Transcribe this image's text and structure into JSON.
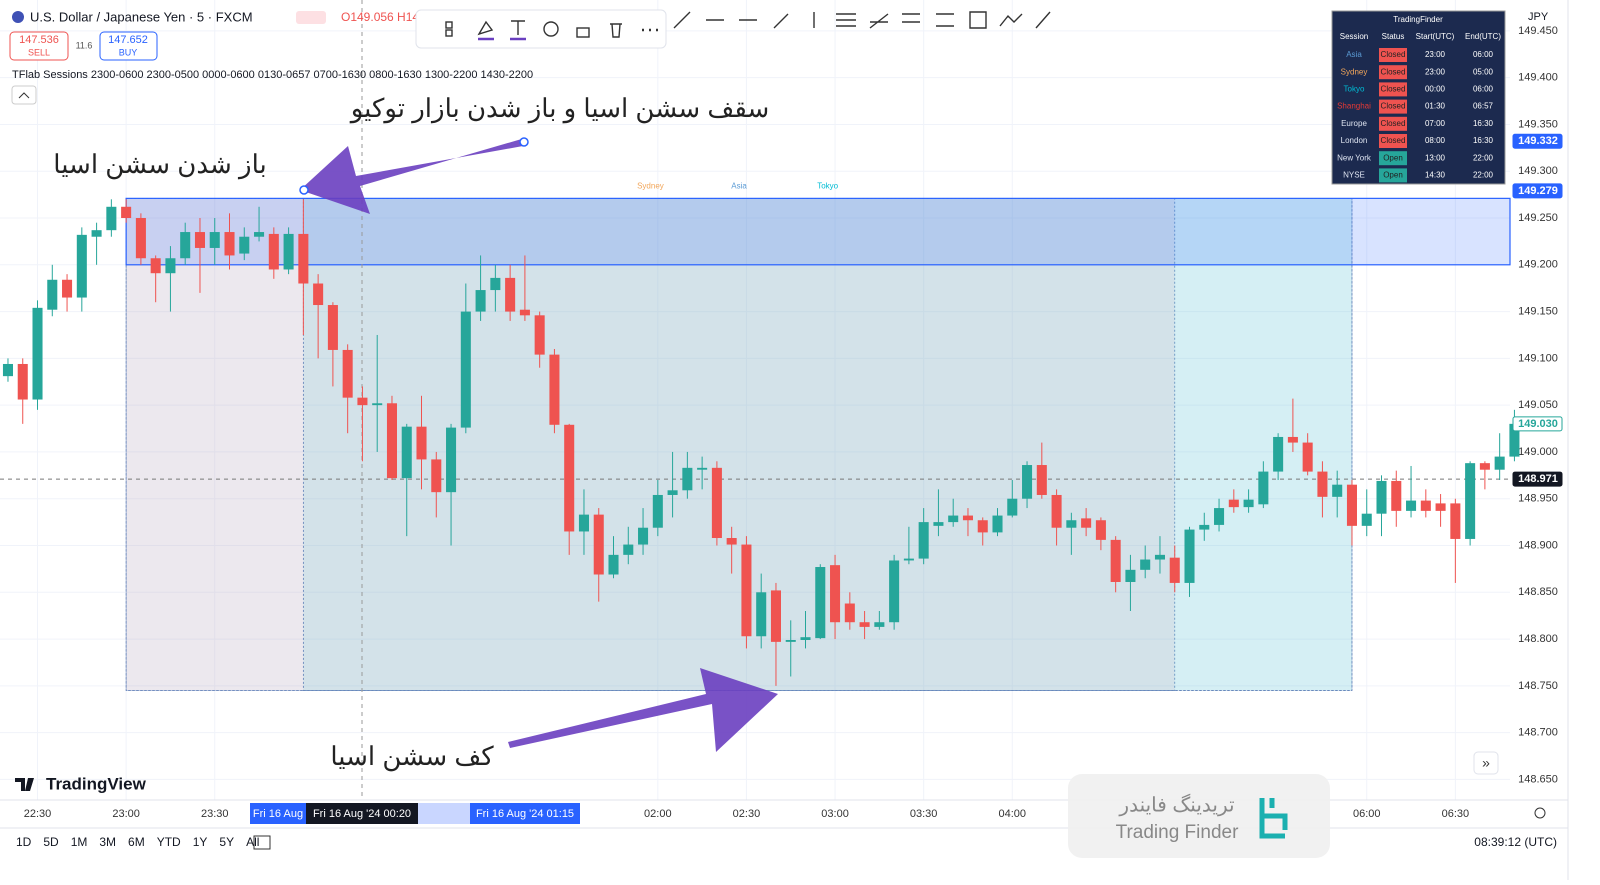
{
  "header": {
    "symbol": "U.S. Dollar / Japanese Yen · 5 · FXCM",
    "ohlc": "O149.056 H14",
    "sell_price": "147.536",
    "sell": "SELL",
    "spread": "11.6",
    "buy_price": "147.652",
    "buy": "BUY",
    "indicator": "TFlab Sessions 2300-0600 2300-0500 0000-0600 0130-0657 0700-1630 0800-1630 1300-2200 1430-2200",
    "currency": "JPY"
  },
  "chart_data": {
    "type": "candlestick",
    "up_color": "#26a69a",
    "down_color": "#ef5350",
    "open": [
      149.081,
      149.094,
      149.056,
      149.152,
      149.184,
      149.165,
      149.23,
      149.237,
      149.262,
      149.25,
      149.207,
      149.191,
      149.207,
      149.235,
      149.218,
      149.235,
      149.212,
      149.23,
      149.233,
      149.195,
      149.233,
      149.18,
      149.157,
      149.109,
      149.058,
      149.05,
      149.052,
      148.972,
      149.027,
      148.992,
      148.957,
      149.026,
      149.15,
      149.173,
      149.186,
      149.152,
      149.146,
      149.104,
      149.029,
      148.915,
      148.933,
      148.869,
      148.89,
      148.901,
      148.919,
      148.954,
      148.959,
      148.981,
      148.983,
      148.908,
      148.901,
      148.803,
      148.852,
      148.797,
      148.799,
      148.801,
      148.879,
      148.838,
      148.818,
      148.813,
      148.818,
      148.884,
      148.886,
      148.921,
      148.925,
      148.932,
      148.927,
      148.914,
      148.932,
      148.95,
      148.986,
      148.954,
      148.919,
      148.929,
      148.927,
      148.906,
      148.861,
      148.874,
      148.885,
      148.887,
      148.86,
      148.917,
      148.922,
      148.949,
      148.941,
      148.944,
      148.979,
      149.016,
      149.01,
      148.979,
      148.952,
      148.965,
      148.921,
      148.934,
      148.969,
      148.937,
      148.948,
      148.945,
      148.945,
      148.907,
      148.988,
      148.981,
      148.995
    ],
    "high": [
      149.1,
      149.1,
      149.162,
      149.2,
      149.19,
      149.24,
      149.245,
      149.27,
      149.27,
      149.255,
      149.21,
      149.22,
      149.245,
      149.25,
      149.25,
      149.255,
      149.24,
      149.262,
      149.24,
      149.24,
      149.27,
      149.19,
      149.16,
      149.115,
      149.07,
      149.125,
      149.06,
      149.03,
      149.06,
      149.0,
      149.03,
      149.18,
      149.21,
      149.2,
      149.2,
      149.21,
      149.15,
      149.11,
      149.03,
      148.96,
      148.94,
      148.91,
      148.92,
      148.94,
      148.97,
      149.0,
      149.0,
      148.995,
      148.99,
      148.92,
      148.91,
      148.87,
      148.86,
      148.82,
      148.83,
      148.88,
      148.89,
      148.85,
      148.83,
      148.83,
      148.89,
      148.92,
      148.94,
      148.96,
      148.95,
      148.94,
      148.93,
      148.94,
      148.97,
      148.99,
      149.01,
      148.96,
      148.935,
      148.94,
      148.93,
      148.91,
      148.89,
      148.9,
      148.91,
      148.9,
      148.92,
      148.935,
      148.95,
      148.96,
      148.96,
      148.99,
      149.02,
      149.057,
      149.02,
      148.99,
      148.98,
      148.97,
      148.96,
      148.975,
      148.98,
      148.985,
      148.96,
      148.955,
      148.95,
      148.99,
      148.99,
      149.02,
      149.045
    ],
    "low": [
      149.075,
      149.03,
      149.045,
      149.145,
      149.15,
      149.15,
      149.2,
      149.23,
      149.245,
      149.2,
      149.16,
      149.15,
      149.2,
      149.17,
      149.2,
      149.195,
      149.205,
      149.225,
      149.185,
      149.19,
      149.125,
      149.1,
      149.07,
      149.02,
      148.99,
      149.0,
      148.97,
      148.91,
      148.96,
      148.93,
      148.9,
      149.02,
      149.14,
      149.15,
      149.14,
      149.14,
      149.09,
      149.02,
      148.89,
      148.89,
      148.84,
      148.865,
      148.88,
      148.89,
      148.91,
      148.93,
      148.95,
      148.96,
      148.9,
      148.87,
      148.79,
      148.79,
      148.75,
      148.76,
      148.79,
      148.8,
      148.8,
      148.81,
      148.8,
      148.81,
      148.81,
      148.88,
      148.88,
      148.91,
      148.92,
      148.91,
      148.9,
      148.91,
      148.93,
      148.94,
      148.95,
      148.9,
      148.89,
      148.91,
      148.895,
      148.85,
      148.83,
      148.865,
      148.87,
      148.85,
      148.845,
      148.905,
      148.915,
      148.935,
      148.935,
      148.94,
      148.97,
      149.0,
      148.975,
      148.93,
      148.93,
      148.9,
      148.91,
      148.91,
      148.92,
      148.93,
      148.93,
      148.92,
      148.86,
      148.9,
      148.96,
      148.97,
      148.99
    ],
    "close": [
      149.094,
      149.056,
      149.154,
      149.184,
      149.165,
      149.232,
      149.237,
      149.262,
      149.25,
      149.207,
      149.191,
      149.207,
      149.235,
      149.218,
      149.235,
      149.21,
      149.23,
      149.235,
      149.195,
      149.233,
      149.18,
      149.157,
      149.109,
      149.058,
      149.05,
      149.052,
      148.972,
      149.027,
      148.992,
      148.957,
      149.026,
      149.15,
      149.173,
      149.186,
      149.15,
      149.146,
      149.104,
      149.029,
      148.915,
      148.933,
      148.869,
      148.89,
      148.901,
      148.919,
      148.954,
      148.959,
      148.983,
      148.983,
      148.908,
      148.901,
      148.803,
      148.85,
      148.797,
      148.799,
      148.802,
      148.877,
      148.818,
      148.818,
      148.813,
      148.818,
      148.884,
      148.886,
      148.925,
      148.925,
      148.932,
      148.927,
      148.914,
      148.932,
      148.95,
      148.986,
      148.954,
      148.919,
      148.927,
      148.919,
      148.906,
      148.861,
      148.874,
      148.885,
      148.89,
      148.86,
      148.917,
      148.922,
      148.94,
      148.941,
      148.949,
      148.979,
      149.016,
      149.01,
      148.979,
      148.952,
      148.965,
      148.921,
      148.934,
      148.969,
      148.937,
      148.948,
      148.937,
      148.937,
      148.907,
      148.988,
      148.981,
      148.995,
      149.03
    ],
    "xlim": [
      -0.54,
      101.7
    ],
    "ylim": [
      148.628,
      149.483
    ],
    "xticks": [
      {
        "value": 2,
        "label": "22:30"
      },
      {
        "value": 8,
        "label": "23:00"
      },
      {
        "value": 14,
        "label": "23:30"
      },
      {
        "value": 44,
        "label": "02:00"
      },
      {
        "value": 50,
        "label": "02:30"
      },
      {
        "value": 56,
        "label": "03:00"
      },
      {
        "value": 62,
        "label": "03:30"
      },
      {
        "value": 68,
        "label": "04:00"
      },
      {
        "value": 92,
        "label": "06:00"
      },
      {
        "value": 98,
        "label": "06:30"
      }
    ],
    "yticks": [
      {
        "value": 148.65,
        "label": "148.650"
      },
      {
        "value": 148.7,
        "label": "148.700"
      },
      {
        "value": 148.75,
        "label": "148.750"
      },
      {
        "value": 148.8,
        "label": "148.800"
      },
      {
        "value": 148.85,
        "label": "148.850"
      },
      {
        "value": 148.9,
        "label": "148.900"
      },
      {
        "value": 148.95,
        "label": "148.950"
      },
      {
        "value": 149.0,
        "label": "149.000"
      },
      {
        "value": 149.05,
        "label": "149.050"
      },
      {
        "value": 149.1,
        "label": "149.100"
      },
      {
        "value": 149.15,
        "label": "149.150"
      },
      {
        "value": 149.2,
        "label": "149.200"
      },
      {
        "value": 149.25,
        "label": "149.250"
      },
      {
        "value": 149.3,
        "label": "149.300"
      },
      {
        "value": 149.35,
        "label": "149.350"
      },
      {
        "value": 149.4,
        "label": "149.400"
      },
      {
        "value": 149.45,
        "label": "149.450"
      }
    ],
    "grid": true,
    "time_markers": [
      "Fri 16 Aug",
      "Fri 16 Aug '24  00:20",
      "Fri 16 Aug '24  01:15"
    ],
    "price_labels": [
      {
        "value": 149.332,
        "label": "149.332",
        "bg": "#2962ff",
        "fg": "#ffffff"
      },
      {
        "value": 149.279,
        "label": "149.279",
        "bg": "#2962ff",
        "fg": "#ffffff"
      },
      {
        "value": 149.03,
        "label": "149.030",
        "bg": "#ffffff",
        "fg": "#26a69a"
      },
      {
        "value": 148.971,
        "label": "148.971",
        "bg": "#131722",
        "fg": "#ffffff"
      }
    ],
    "sessions": [
      {
        "name": "Sydney",
        "start": 8,
        "end": 79,
        "high": 149.271,
        "low": 148.745,
        "color": "rgba(236,150,170,0.16)",
        "label_color": "#f2a65a"
      },
      {
        "name": "Asia",
        "start": 8,
        "end": 91,
        "high": 149.271,
        "low": 148.745,
        "color": "rgba(120,190,220,0.12)",
        "label_color": "#5b9bd5"
      },
      {
        "name": "Tokyo",
        "start": 20,
        "end": 91,
        "high": 149.271,
        "low": 148.745,
        "color": "rgba(80,200,210,0.16)",
        "label_color": "#00bcd4"
      }
    ],
    "asia_zone": {
      "start": 8,
      "high": 149.271,
      "low": 149.2,
      "color": "rgba(41,98,255,0.18)",
      "border": "#2962ff"
    }
  },
  "table": {
    "title": "TradingFinder",
    "header": [
      "Session",
      "Status",
      "Start(UTC)",
      "End(UTC)"
    ],
    "rows": [
      {
        "cells": [
          "Asia",
          "Closed",
          "23:00",
          "06:00"
        ],
        "name_color": "#5b9bd5",
        "status_color": "#ef5350"
      },
      {
        "cells": [
          "Sydney",
          "Closed",
          "23:00",
          "05:00"
        ],
        "name_color": "#f2a65a",
        "status_color": "#ef5350"
      },
      {
        "cells": [
          "Tokyo",
          "Closed",
          "00:00",
          "06:00"
        ],
        "name_color": "#00bcd4",
        "status_color": "#ef5350"
      },
      {
        "cells": [
          "Shanghai",
          "Closed",
          "01:30",
          "06:57"
        ],
        "name_color": "#e53935",
        "status_color": "#ef5350"
      },
      {
        "cells": [
          "Europe",
          "Closed",
          "07:00",
          "16:30"
        ],
        "name_color": "#dde3f0",
        "status_color": "#ef5350"
      },
      {
        "cells": [
          "London",
          "Closed",
          "08:00",
          "16:30"
        ],
        "name_color": "#dde3f0",
        "status_color": "#ef5350"
      },
      {
        "cells": [
          "New York",
          "Open",
          "13:00",
          "22:00"
        ],
        "name_color": "#dde3f0",
        "status_color": "#26a69a"
      },
      {
        "cells": [
          "NYSE",
          "Open",
          "14:30",
          "22:00"
        ],
        "name_color": "#dde3f0",
        "status_color": "#26a69a"
      }
    ]
  },
  "annotations": [
    "سقف سشن اسیا و باز شدن بازار توکیو",
    "باز شدن سشن اسیا",
    "کف سشن اسیا"
  ],
  "footer": {
    "ranges": [
      "1D",
      "5D",
      "1M",
      "3M",
      "6M",
      "YTD",
      "1Y",
      "5Y",
      "All"
    ],
    "clock": "08:39:12 (UTC)",
    "logo": "TradingView"
  },
  "watermark": {
    "fa": "تریدینگ فایندر",
    "en": "Trading Finder"
  }
}
